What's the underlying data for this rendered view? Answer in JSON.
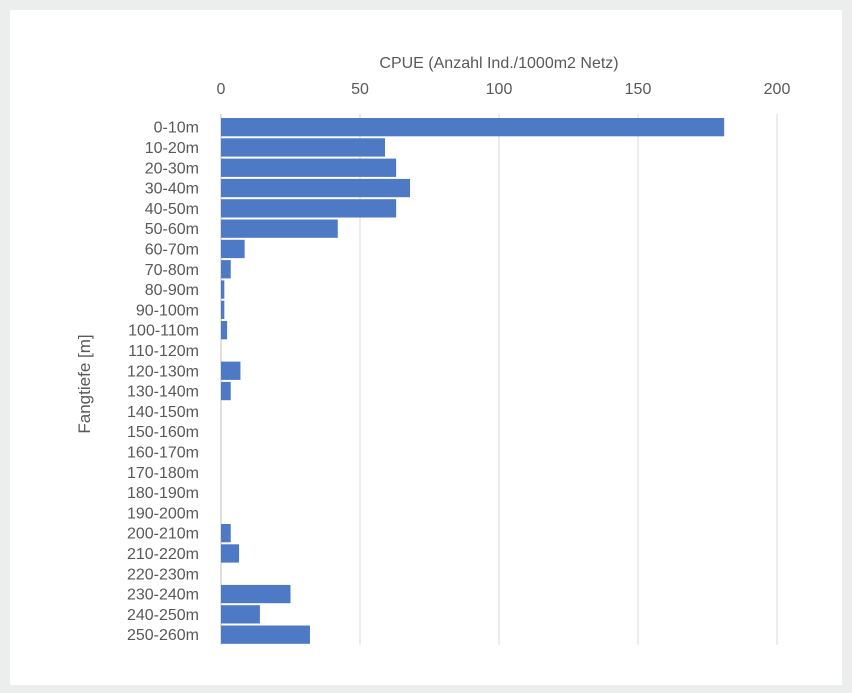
{
  "chart_data": {
    "type": "bar",
    "orientation": "horizontal",
    "title": "",
    "xlabel": "CPUE (Anzahl Ind./1000m2 Netz)",
    "ylabel": "Fangtiefe [m]",
    "xlim": [
      0,
      200
    ],
    "xticks": [
      "0",
      "50",
      "100",
      "150",
      "200"
    ],
    "x_axis_position": "top",
    "grid": "vertical",
    "legend": "none",
    "bar_color": "#4e79c4",
    "categories": [
      "0-10m",
      "10-20m",
      "20-30m",
      "30-40m",
      "40-50m",
      "50-60m",
      "60-70m",
      "70-80m",
      "80-90m",
      "90-100m",
      "100-110m",
      "110-120m",
      "120-130m",
      "130-140m",
      "140-150m",
      "150-160m",
      "160-170m",
      "170-180m",
      "180-190m",
      "190-200m",
      "200-210m",
      "210-220m",
      "220-230m",
      "230-240m",
      "240-250m",
      "250-260m"
    ],
    "values": [
      181,
      59,
      63,
      68,
      63,
      42,
      8.5,
      3.5,
      1.2,
      1.2,
      2.2,
      0,
      7,
      3.5,
      0,
      0,
      0,
      0,
      0,
      0,
      3.5,
      6.5,
      0,
      25,
      14,
      32
    ]
  }
}
